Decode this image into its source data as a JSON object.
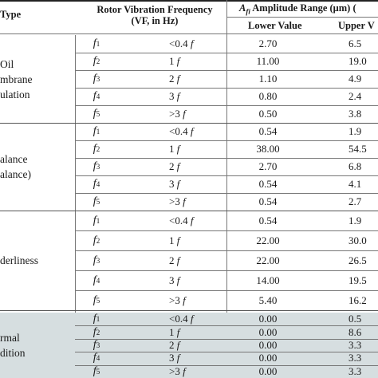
{
  "headers": {
    "fault_type": "Type",
    "freq_line1": "Rotor Vibration Frequency",
    "freq_line2": "(VF, in Hz)",
    "amp_symbol": "A",
    "amp_sub": "fi",
    "amp_text": " Amplitude Range (μm) (",
    "lower": "Lower Value",
    "upper": "Upper V"
  },
  "groups": [
    {
      "label_lines": [
        "Oil",
        "mbrane",
        "ulation"
      ],
      "shaded": false,
      "rows": [
        {
          "f": "f",
          "sub": "1",
          "vf": "<0.4",
          "vf_sym": "f",
          "lower": "2.70",
          "upper": "6.5"
        },
        {
          "f": "f",
          "sub": "2",
          "vf": "1",
          "vf_sym": "f",
          "lower": "11.00",
          "upper": "19.0"
        },
        {
          "f": "f",
          "sub": "3",
          "vf": "2",
          "vf_sym": "f",
          "lower": "1.10",
          "upper": "4.9"
        },
        {
          "f": "f",
          "sub": "4",
          "vf": "3",
          "vf_sym": "f",
          "lower": "0.80",
          "upper": "2.4"
        },
        {
          "f": "f",
          "sub": "5",
          "vf": ">3",
          "vf_sym": "f",
          "lower": "0.50",
          "upper": "3.8"
        }
      ]
    },
    {
      "label_lines": [
        "alance",
        "alance)"
      ],
      "shaded": false,
      "rows": [
        {
          "f": "f",
          "sub": "1",
          "vf": "<0.4",
          "vf_sym": "f",
          "lower": "0.54",
          "upper": "1.9"
        },
        {
          "f": "f",
          "sub": "2",
          "vf": "1",
          "vf_sym": "f",
          "lower": "38.00",
          "upper": "54.5"
        },
        {
          "f": "f",
          "sub": "3",
          "vf": "2",
          "vf_sym": "f",
          "lower": "2.70",
          "upper": "6.8"
        },
        {
          "f": "f",
          "sub": "4",
          "vf": "3",
          "vf_sym": "f",
          "lower": "0.54",
          "upper": "4.1"
        },
        {
          "f": "f",
          "sub": "5",
          "vf": ">3",
          "vf_sym": "f",
          "lower": "0.54",
          "upper": "2.7"
        }
      ]
    },
    {
      "label_lines": [
        "derliness"
      ],
      "shaded": false,
      "rows": [
        {
          "f": "f",
          "sub": "1",
          "vf": "<0.4",
          "vf_sym": "f",
          "lower": "0.54",
          "upper": "1.9"
        },
        {
          "f": "f",
          "sub": "2",
          "vf": "1",
          "vf_sym": "f",
          "lower": "22.00",
          "upper": "30.0"
        },
        {
          "f": "f",
          "sub": "3",
          "vf": "2",
          "vf_sym": "f",
          "lower": "22.00",
          "upper": "26.5"
        },
        {
          "f": "f",
          "sub": "4",
          "vf": "3",
          "vf_sym": "f",
          "lower": "14.00",
          "upper": "19.5"
        },
        {
          "f": "f",
          "sub": "5",
          "vf": ">3",
          "vf_sym": "f",
          "lower": "5.40",
          "upper": "16.2"
        }
      ]
    },
    {
      "label_lines": [
        "rmal",
        "dition"
      ],
      "shaded": true,
      "rows": [
        {
          "f": "f",
          "sub": "1",
          "vf": "<0.4",
          "vf_sym": "f",
          "lower": "0.00",
          "upper": "0.5"
        },
        {
          "f": "f",
          "sub": "2",
          "vf": "1",
          "vf_sym": "f",
          "lower": "0.00",
          "upper": "8.6"
        },
        {
          "f": "f",
          "sub": "3",
          "vf": "2",
          "vf_sym": "f",
          "lower": "0.00",
          "upper": "3.3"
        },
        {
          "f": "f",
          "sub": "4",
          "vf": "3",
          "vf_sym": "f",
          "lower": "0.00",
          "upper": "3.3"
        },
        {
          "f": "f",
          "sub": "5",
          "vf": ">3",
          "vf_sym": "f",
          "lower": "0.00",
          "upper": "3.3"
        }
      ]
    }
  ],
  "colors": {
    "shade": "#d6dee0",
    "rule": "#777777",
    "text": "#1a1a1a"
  }
}
